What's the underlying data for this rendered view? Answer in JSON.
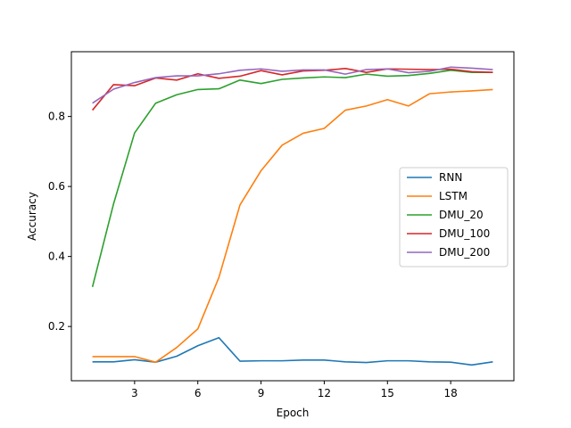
{
  "chart_data": {
    "type": "line",
    "xlabel": "Epoch",
    "ylabel": "Accuracy",
    "xlim": [
      0,
      21
    ],
    "ylim": [
      0.045,
      0.985
    ],
    "xticks": [
      3,
      6,
      9,
      12,
      15,
      18
    ],
    "yticks": [
      0.2,
      0.4,
      0.6,
      0.8
    ],
    "grid": false,
    "legend_position": "center-right",
    "x": [
      1,
      2,
      3,
      4,
      5,
      6,
      7,
      8,
      9,
      10,
      11,
      12,
      13,
      14,
      15,
      16,
      17,
      18,
      19,
      20
    ],
    "series": [
      {
        "name": "RNN",
        "color": "#1f77b4",
        "values": [
          0.099,
          0.099,
          0.105,
          0.098,
          0.115,
          0.145,
          0.168,
          0.101,
          0.102,
          0.102,
          0.104,
          0.104,
          0.099,
          0.097,
          0.102,
          0.102,
          0.099,
          0.098,
          0.09,
          0.099
        ]
      },
      {
        "name": "LSTM",
        "color": "#ff7f0e",
        "values": [
          0.114,
          0.114,
          0.114,
          0.098,
          0.14,
          0.193,
          0.34,
          0.547,
          0.645,
          0.718,
          0.752,
          0.766,
          0.818,
          0.83,
          0.848,
          0.83,
          0.865,
          0.87,
          0.873,
          0.877
        ]
      },
      {
        "name": "DMU_20",
        "color": "#2ca02c",
        "values": [
          0.313,
          0.55,
          0.753,
          0.838,
          0.862,
          0.877,
          0.879,
          0.904,
          0.894,
          0.906,
          0.91,
          0.913,
          0.911,
          0.921,
          0.915,
          0.917,
          0.923,
          0.932,
          0.926,
          0.926
        ]
      },
      {
        "name": "DMU_100",
        "color": "#d62728",
        "values": [
          0.818,
          0.891,
          0.888,
          0.91,
          0.904,
          0.922,
          0.909,
          0.915,
          0.931,
          0.919,
          0.93,
          0.932,
          0.937,
          0.926,
          0.936,
          0.935,
          0.934,
          0.935,
          0.928,
          0.926
        ]
      },
      {
        "name": "DMU_200",
        "color": "#9467bd",
        "values": [
          0.838,
          0.878,
          0.897,
          0.911,
          0.916,
          0.916,
          0.922,
          0.932,
          0.936,
          0.929,
          0.933,
          0.933,
          0.921,
          0.934,
          0.936,
          0.925,
          0.929,
          0.941,
          0.938,
          0.934
        ]
      }
    ]
  }
}
